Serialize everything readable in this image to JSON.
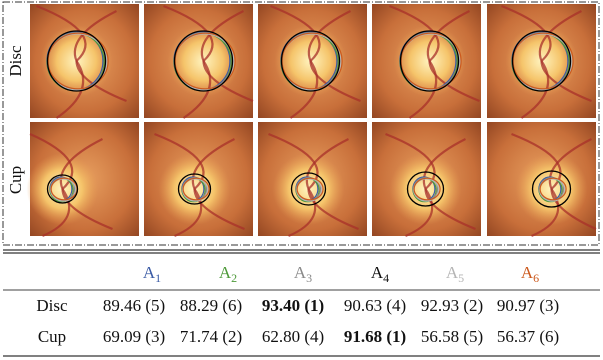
{
  "figure": {
    "row_labels": [
      "Disc",
      "Cup"
    ]
  },
  "table": {
    "headers": [
      {
        "letter": "A",
        "sub": "1",
        "color": "#3b5ba5"
      },
      {
        "letter": "A",
        "sub": "2",
        "color": "#4e9a3a"
      },
      {
        "letter": "A",
        "sub": "3",
        "color": "#8a8a8a"
      },
      {
        "letter": "A",
        "sub": "4",
        "color": "#111111"
      },
      {
        "letter": "A",
        "sub": "5",
        "color": "#b5b5b5"
      },
      {
        "letter": "A",
        "sub": "6",
        "color": "#cc5a1e"
      }
    ],
    "rows": [
      {
        "label": "Disc",
        "cells": [
          "89.46 (5)",
          "88.29 (6)",
          "93.40 (1)",
          "90.63 (4)",
          "92.93 (2)",
          "90.97 (3)"
        ],
        "best": 2
      },
      {
        "label": "Cup",
        "cells": [
          "69.09 (3)",
          "71.74 (2)",
          "62.80 (4)",
          "91.68 (1)",
          "56.58 (5)",
          "56.37 (6)"
        ],
        "best": 3
      }
    ]
  }
}
